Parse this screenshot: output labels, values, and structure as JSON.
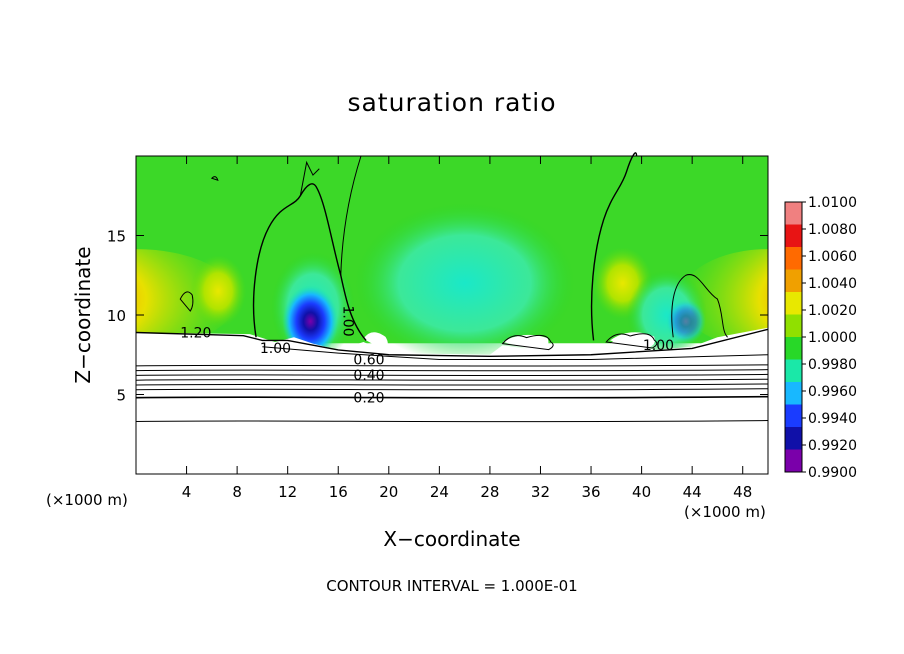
{
  "chart_data": {
    "type": "heatmap",
    "title": "saturation ratio",
    "xlabel": "X−coordinate",
    "ylabel": "Z−coordinate",
    "x_unit": "(×1000 m)",
    "xlim": [
      0,
      50
    ],
    "ylim": [
      0,
      20
    ],
    "x_ticks": [
      4,
      8,
      12,
      16,
      20,
      24,
      28,
      32,
      36,
      40,
      44,
      48
    ],
    "y_ticks": [
      5,
      10,
      15
    ],
    "colorbar": {
      "levels": [
        "1.0100",
        "1.0080",
        "1.0060",
        "1.0040",
        "1.0020",
        "1.0000",
        "0.9980",
        "0.9960",
        "0.9940",
        "0.9920",
        "0.9900"
      ],
      "colors": [
        "#f08080",
        "#e81414",
        "#ff6a00",
        "#f0a000",
        "#e8e800",
        "#90e000",
        "#28d828",
        "#1ae8a8",
        "#18b8ff",
        "#1a3cff",
        "#1010a8",
        "#7a00aa"
      ]
    },
    "contour_interval": "CONTOUR INTERVAL = 1.000E-01",
    "contour_labels": [
      {
        "text": "1.20",
        "x": 3.5,
        "y": 8.6
      },
      {
        "text": "1.00",
        "x": 9.8,
        "y": 7.6
      },
      {
        "text": "1.00",
        "x": 16.4,
        "y": 10.6
      },
      {
        "text": "0.60",
        "x": 17.2,
        "y": 6.9
      },
      {
        "text": "0.40",
        "x": 17.2,
        "y": 5.9
      },
      {
        "text": "0.20",
        "x": 17.2,
        "y": 4.5
      },
      {
        "text": "1.00",
        "x": 40.1,
        "y": 7.8
      }
    ],
    "base_field_value": 1.0
  },
  "text": {
    "title": "saturation ratio",
    "xlabel": "X−coordinate",
    "ylabel": "Z−coordinate",
    "x_unit": "(×1000 m)",
    "contour_note": "CONTOUR INTERVAL = 1.000E-01"
  }
}
